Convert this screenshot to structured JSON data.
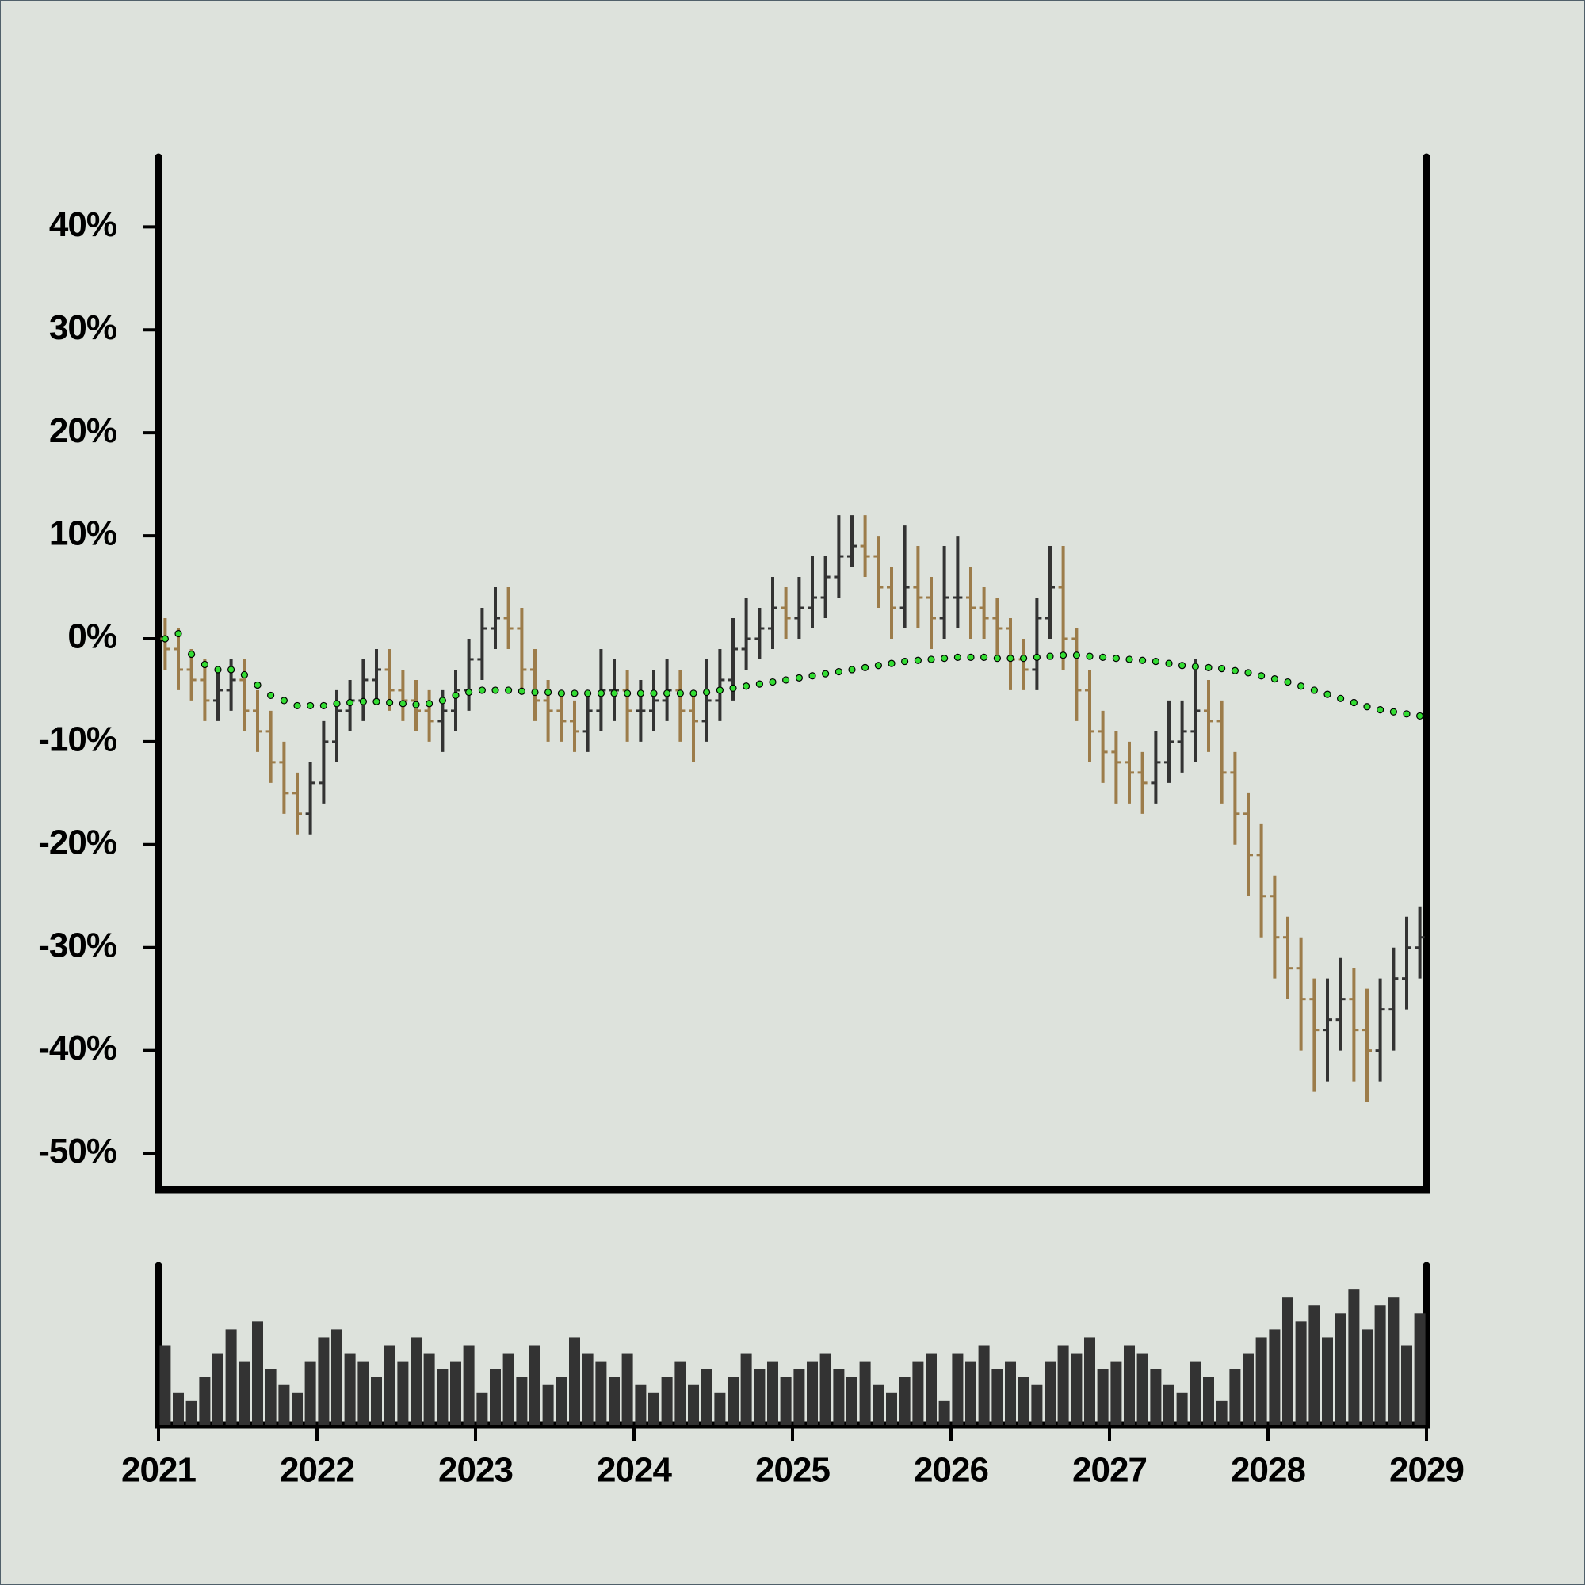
{
  "chart_data": [
    {
      "type": "ohlc",
      "x": [
        2021.042,
        2021.125,
        2021.208,
        2021.292,
        2021.375,
        2021.458,
        2021.542,
        2021.625,
        2021.708,
        2021.792,
        2021.875,
        2021.958,
        2022.042,
        2022.125,
        2022.208,
        2022.292,
        2022.375,
        2022.458,
        2022.542,
        2022.625,
        2022.708,
        2022.792,
        2022.875,
        2022.958,
        2023.042,
        2023.125,
        2023.208,
        2023.292,
        2023.375,
        2023.458,
        2023.542,
        2023.625,
        2023.708,
        2023.792,
        2023.875,
        2023.958,
        2024.042,
        2024.125,
        2024.208,
        2024.292,
        2024.375,
        2024.458,
        2024.542,
        2024.625,
        2024.708,
        2024.792,
        2024.875,
        2024.958,
        2025.042,
        2025.125,
        2025.208,
        2025.292,
        2025.375,
        2025.458,
        2025.542,
        2025.625,
        2025.708,
        2025.792,
        2025.875,
        2025.958,
        2026.042,
        2026.125,
        2026.208,
        2026.292,
        2026.375,
        2026.458,
        2026.542,
        2026.625,
        2026.708,
        2026.792,
        2026.875,
        2026.958,
        2027.042,
        2027.125,
        2027.208,
        2027.292,
        2027.375,
        2027.458,
        2027.542,
        2027.625,
        2027.708,
        2027.792,
        2027.875,
        2027.958,
        2028.042,
        2028.125,
        2028.208,
        2028.292,
        2028.375,
        2028.458,
        2028.542,
        2028.625,
        2028.708,
        2028.792,
        2028.875,
        2028.958
      ],
      "open": [
        0,
        -1,
        -3,
        -4,
        -6,
        -5,
        -4,
        -7,
        -9,
        -12,
        -15,
        -17,
        -14,
        -10,
        -7,
        -6,
        -4,
        -3,
        -5,
        -6,
        -7,
        -8,
        -7,
        -5,
        -2,
        1,
        2,
        1,
        -3,
        -6,
        -7,
        -8,
        -9,
        -7,
        -5,
        -5,
        -7,
        -7,
        -6,
        -5,
        -7,
        -8,
        -6,
        -4,
        -1,
        0,
        1,
        3,
        2,
        3,
        4,
        6,
        8,
        9,
        8,
        5,
        3,
        5,
        4,
        2,
        4,
        4,
        3,
        2,
        1,
        -2,
        -3,
        2,
        5,
        0,
        -5,
        -9,
        -11,
        -12,
        -13,
        -14,
        -12,
        -10,
        -9,
        -7,
        -8,
        -13,
        -17,
        -21,
        -25,
        -29,
        -32,
        -35,
        -38,
        -37,
        -35,
        -38,
        -40,
        -36,
        -33,
        -30
      ],
      "high": [
        2,
        1,
        -1,
        -2,
        -3,
        -2,
        -2,
        -5,
        -7,
        -10,
        -13,
        -12,
        -8,
        -5,
        -4,
        -2,
        -1,
        -1,
        -3,
        -4,
        -5,
        -5,
        -3,
        0,
        3,
        5,
        5,
        3,
        -1,
        -4,
        -5,
        -6,
        -5,
        -1,
        -2,
        -3,
        -4,
        -3,
        -2,
        -3,
        -5,
        -2,
        -1,
        2,
        4,
        3,
        6,
        5,
        6,
        8,
        8,
        12,
        12,
        12,
        10,
        7,
        11,
        9,
        6,
        9,
        10,
        7,
        5,
        4,
        2,
        0,
        4,
        9,
        9,
        1,
        -3,
        -7,
        -9,
        -10,
        -11,
        -9,
        -6,
        -6,
        -2,
        -4,
        -6,
        -11,
        -15,
        -18,
        -23,
        -27,
        -29,
        -33,
        -33,
        -31,
        -32,
        -34,
        -33,
        -30,
        -27,
        -26
      ],
      "low": [
        -3,
        -5,
        -6,
        -8,
        -8,
        -7,
        -9,
        -11,
        -14,
        -17,
        -19,
        -19,
        -16,
        -12,
        -9,
        -8,
        -6,
        -7,
        -8,
        -9,
        -10,
        -11,
        -9,
        -7,
        -4,
        -1,
        -1,
        -5,
        -8,
        -10,
        -10,
        -11,
        -11,
        -9,
        -8,
        -10,
        -10,
        -9,
        -8,
        -10,
        -12,
        -10,
        -8,
        -6,
        -3,
        -2,
        -1,
        0,
        0,
        1,
        2,
        4,
        7,
        6,
        3,
        0,
        1,
        1,
        -1,
        0,
        1,
        0,
        0,
        -2,
        -5,
        -5,
        -5,
        0,
        -3,
        -8,
        -12,
        -14,
        -16,
        -16,
        -17,
        -16,
        -14,
        -13,
        -12,
        -11,
        -16,
        -20,
        -25,
        -29,
        -33,
        -35,
        -40,
        -44,
        -43,
        -40,
        -43,
        -45,
        -43,
        -40,
        -36,
        -33
      ],
      "close": [
        -1,
        -3,
        -4,
        -6,
        -5,
        -4,
        -7,
        -9,
        -12,
        -15,
        -17,
        -14,
        -10,
        -7,
        -6,
        -4,
        -3,
        -5,
        -6,
        -7,
        -8,
        -7,
        -5,
        -2,
        1,
        2,
        1,
        -3,
        -6,
        -7,
        -8,
        -9,
        -7,
        -5,
        -5,
        -7,
        -7,
        -6,
        -5,
        -7,
        -8,
        -6,
        -4,
        -1,
        0,
        1,
        3,
        2,
        3,
        4,
        6,
        8,
        9,
        8,
        5,
        3,
        5,
        4,
        2,
        4,
        4,
        3,
        2,
        1,
        -2,
        -3,
        2,
        5,
        0,
        -5,
        -9,
        -11,
        -12,
        -13,
        -14,
        -12,
        -10,
        -9,
        -7,
        -8,
        -13,
        -17,
        -21,
        -25,
        -29,
        -32,
        -35,
        -38,
        -37,
        -35,
        -38,
        -40,
        -36,
        -33,
        -30,
        -29
      ],
      "ma": {
        "color": "#33dd33",
        "values": [
          0,
          0.5,
          -1.5,
          -2.5,
          -3,
          -3,
          -3.5,
          -4.5,
          -5.5,
          -6,
          -6.5,
          -6.5,
          -6.5,
          -6.3,
          -6.2,
          -6.1,
          -6.1,
          -6.2,
          -6.3,
          -6.4,
          -6.3,
          -6,
          -5.5,
          -5.2,
          -5,
          -5,
          -5,
          -5.1,
          -5.2,
          -5.2,
          -5.3,
          -5.3,
          -5.3,
          -5.3,
          -5.3,
          -5.3,
          -5.3,
          -5.3,
          -5.3,
          -5.3,
          -5.3,
          -5.2,
          -5,
          -4.8,
          -4.6,
          -4.4,
          -4.2,
          -4,
          -3.8,
          -3.6,
          -3.4,
          -3.2,
          -3,
          -2.8,
          -2.6,
          -2.4,
          -2.2,
          -2.1,
          -2,
          -1.9,
          -1.8,
          -1.8,
          -1.8,
          -1.9,
          -1.9,
          -1.9,
          -1.8,
          -1.7,
          -1.6,
          -1.6,
          -1.7,
          -1.8,
          -1.9,
          -2,
          -2.1,
          -2.2,
          -2.4,
          -2.6,
          -2.7,
          -2.8,
          -2.9,
          -3.1,
          -3.3,
          -3.6,
          -3.9,
          -4.2,
          -4.6,
          -5,
          -5.4,
          -5.8,
          -6.2,
          -6.6,
          -6.9,
          -7.1,
          -7.3,
          -7.5
        ]
      },
      "up_color": "#333333",
      "down_color": "#9c7c4a",
      "xlim": [
        2021,
        2029
      ],
      "ylim": [
        -53.5,
        46.8
      ],
      "yticks": [
        {
          "value": 40,
          "label": "40%"
        },
        {
          "value": 30,
          "label": "30%"
        },
        {
          "value": 20,
          "label": "20%"
        },
        {
          "value": 10,
          "label": "10%"
        },
        {
          "value": 0,
          "label": "0%"
        },
        {
          "value": -10,
          "label": "-10%"
        },
        {
          "value": -20,
          "label": "-20%"
        },
        {
          "value": -30,
          "label": "-30%"
        },
        {
          "value": -40,
          "label": "-40%"
        },
        {
          "value": -50,
          "label": "-50%"
        }
      ]
    },
    {
      "type": "bar",
      "x": [
        2021.042,
        2021.125,
        2021.208,
        2021.292,
        2021.375,
        2021.458,
        2021.542,
        2021.625,
        2021.708,
        2021.792,
        2021.875,
        2021.958,
        2022.042,
        2022.125,
        2022.208,
        2022.292,
        2022.375,
        2022.458,
        2022.542,
        2022.625,
        2022.708,
        2022.792,
        2022.875,
        2022.958,
        2023.042,
        2023.125,
        2023.208,
        2023.292,
        2023.375,
        2023.458,
        2023.542,
        2023.625,
        2023.708,
        2023.792,
        2023.875,
        2023.958,
        2024.042,
        2024.125,
        2024.208,
        2024.292,
        2024.375,
        2024.458,
        2024.542,
        2024.625,
        2024.708,
        2024.792,
        2024.875,
        2024.958,
        2025.042,
        2025.125,
        2025.208,
        2025.292,
        2025.375,
        2025.458,
        2025.542,
        2025.625,
        2025.708,
        2025.792,
        2025.875,
        2025.958,
        2026.042,
        2026.125,
        2026.208,
        2026.292,
        2026.375,
        2026.458,
        2026.542,
        2026.625,
        2026.708,
        2026.792,
        2026.875,
        2026.958,
        2027.042,
        2027.125,
        2027.208,
        2027.292,
        2027.375,
        2027.458,
        2027.542,
        2027.625,
        2027.708,
        2027.792,
        2027.875,
        2027.958,
        2028.042,
        2028.125,
        2028.208,
        2028.292,
        2028.375,
        2028.458,
        2028.542,
        2028.625,
        2028.708,
        2028.792,
        2028.875,
        2028.958
      ],
      "values": [
        50,
        20,
        15,
        30,
        45,
        60,
        40,
        65,
        35,
        25,
        20,
        40,
        55,
        60,
        45,
        40,
        30,
        50,
        40,
        55,
        45,
        35,
        40,
        50,
        20,
        35,
        45,
        30,
        50,
        25,
        30,
        55,
        45,
        40,
        30,
        45,
        25,
        20,
        30,
        40,
        25,
        35,
        20,
        30,
        45,
        35,
        40,
        30,
        35,
        40,
        45,
        35,
        30,
        40,
        25,
        20,
        30,
        40,
        45,
        15,
        45,
        40,
        50,
        35,
        40,
        30,
        25,
        40,
        50,
        45,
        55,
        35,
        40,
        50,
        45,
        35,
        25,
        20,
        40,
        30,
        15,
        35,
        45,
        55,
        60,
        80,
        65,
        75,
        55,
        70,
        85,
        60,
        75,
        80,
        50,
        70
      ],
      "color": "#333333",
      "xlim": [
        2021,
        2029
      ],
      "ylim": [
        0,
        100
      ],
      "xticks": [
        2021,
        2022,
        2023,
        2024,
        2025,
        2026,
        2027,
        2028,
        2029
      ]
    }
  ]
}
